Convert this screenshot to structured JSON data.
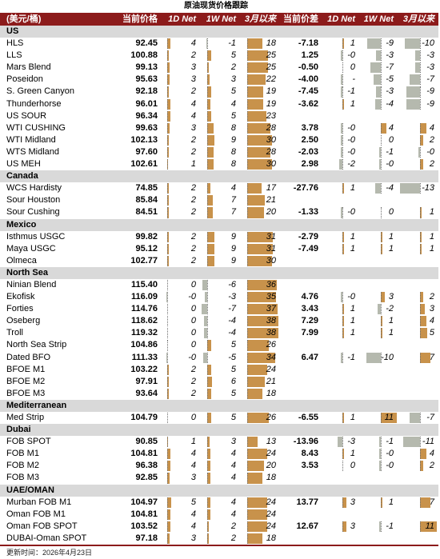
{
  "colors": {
    "header_background": "#8c1b1b",
    "header_text": "#ffffff",
    "section_background": "#d9d9d9",
    "bar_positive": "#c8924b",
    "bar_negative": "#b5b9ae"
  },
  "chart_data": {
    "type": "table",
    "title": "原油现货价格跟踪",
    "columns": [
      "(美元/桶)",
      "当前价格",
      "1D Net",
      "1W Net",
      "3月以来",
      "当前价差",
      "1D Net",
      "1W Net",
      "3月以来"
    ],
    "sections": [
      {
        "name": "US",
        "rows": [
          [
            "HLS",
            "92.45",
            "4",
            "-1",
            "18",
            "-7.18",
            "1",
            "-9",
            "-10"
          ],
          [
            "LLS",
            "100.88",
            "2",
            "5",
            "25",
            "1.25",
            "-0",
            "-3",
            "-3"
          ],
          [
            "Mars Blend",
            "99.13",
            "3",
            "2",
            "25",
            "-0.50",
            "0",
            "-7",
            "-3"
          ],
          [
            "Poseidon",
            "95.63",
            "3",
            "3",
            "22",
            "-4.00",
            "-",
            "-5",
            "-7"
          ],
          [
            "S. Green Canyon",
            "92.18",
            "2",
            "5",
            "19",
            "-7.45",
            "-1",
            "-3",
            "-9"
          ],
          [
            "Thunderhorse",
            "96.01",
            "4",
            "4",
            "19",
            "-3.62",
            "1",
            "-4",
            "-9"
          ],
          [
            "US SOUR",
            "96.34",
            "4",
            "5",
            "23",
            null,
            null,
            null,
            null
          ],
          [
            "WTI CUSHING",
            "99.63",
            "3",
            "8",
            "28",
            "3.78",
            "-0",
            "4",
            "4"
          ],
          [
            "WTI Midland",
            "102.13",
            "2",
            "9",
            "30",
            "2.50",
            "-0",
            "0",
            "2"
          ],
          [
            "WTS Midland",
            "97.60",
            "2",
            "8",
            "28",
            "-2.03",
            "-0",
            "-1",
            "-0"
          ],
          [
            "US MEH",
            "102.61",
            "1",
            "8",
            "30",
            "2.98",
            "-2",
            "-0",
            "2"
          ]
        ]
      },
      {
        "name": "Canada",
        "rows": [
          [
            "WCS Hardisty",
            "74.85",
            "2",
            "4",
            "17",
            "-27.76",
            "1",
            "-4",
            "-13"
          ],
          [
            "Sour Houston",
            "85.84",
            "2",
            "7",
            "21",
            null,
            null,
            null,
            null
          ],
          [
            "Sour Cushing",
            "84.51",
            "2",
            "7",
            "20",
            "-1.33",
            "-0",
            "0",
            "1"
          ]
        ]
      },
      {
        "name": "Mexico",
        "rows": [
          [
            "Isthmus USGC",
            "99.82",
            "2",
            "9",
            "31",
            "-2.79",
            "1",
            "1",
            "1"
          ],
          [
            "Maya USGC",
            "95.12",
            "2",
            "9",
            "31",
            "-7.49",
            "1",
            "1",
            "1"
          ],
          [
            "Olmeca",
            "102.77",
            "2",
            "9",
            "30",
            null,
            null,
            null,
            null
          ]
        ]
      },
      {
        "name": "North Sea",
        "rows": [
          [
            "Ninian Blend",
            "115.40",
            "0",
            "-6",
            "36",
            null,
            null,
            null,
            null
          ],
          [
            "Ekofisk",
            "116.09",
            "-0",
            "-3",
            "35",
            "4.76",
            "-0",
            "3",
            "2"
          ],
          [
            "Forties",
            "114.76",
            "0",
            "-7",
            "37",
            "3.43",
            "1",
            "-2",
            "3"
          ],
          [
            "Oseberg",
            "118.62",
            "0",
            "-4",
            "38",
            "7.29",
            "1",
            "1",
            "4"
          ],
          [
            "Troll",
            "119.32",
            "0",
            "-4",
            "38",
            "7.99",
            "1",
            "1",
            "5"
          ],
          [
            "North Sea Strip",
            "104.86",
            "0",
            "5",
            "26",
            null,
            null,
            null,
            null
          ],
          [
            "Dated BFO",
            "111.33",
            "-0",
            "-5",
            "34",
            "6.47",
            "-1",
            "-10",
            "7"
          ],
          [
            "BFOE M1",
            "103.22",
            "2",
            "5",
            "24",
            null,
            null,
            null,
            null
          ],
          [
            "BFOE M2",
            "97.91",
            "2",
            "6",
            "21",
            null,
            null,
            null,
            null
          ],
          [
            "BFOE M3",
            "93.64",
            "2",
            "5",
            "18",
            null,
            null,
            null,
            null
          ]
        ]
      },
      {
        "name": "Mediterranean",
        "rows": [
          [
            "Med Strip",
            "104.79",
            "0",
            "5",
            "26",
            "-6.55",
            "1",
            "11",
            "-7"
          ]
        ]
      },
      {
        "name": "Dubai",
        "rows": [
          [
            "FOB SPOT",
            "90.85",
            "1",
            "3",
            "13",
            "-13.96",
            "-3",
            "-1",
            "-11"
          ],
          [
            "FOB M1",
            "104.81",
            "4",
            "4",
            "24",
            "8.43",
            "1",
            "-0",
            "4"
          ],
          [
            "FOB M2",
            "96.38",
            "4",
            "4",
            "20",
            "3.53",
            "0",
            "-0",
            "2"
          ],
          [
            "FOB M3",
            "92.85",
            "3",
            "4",
            "18",
            null,
            null,
            null,
            null
          ]
        ]
      },
      {
        "name": "UAE/OMAN",
        "rows": [
          [
            "Murban FOB M1",
            "104.97",
            "5",
            "4",
            "24",
            "13.77",
            "3",
            "1",
            "7"
          ],
          [
            "Oman FOB M1",
            "104.81",
            "4",
            "4",
            "24",
            null,
            null,
            null,
            null
          ],
          [
            "Oman FOB SPOT",
            "103.52",
            "4",
            "2",
            "24",
            "12.67",
            "3",
            "-1",
            "11"
          ],
          [
            "DUBAI-Oman SPOT",
            "97.18",
            "3",
            "2",
            "18",
            null,
            null,
            null,
            null
          ]
        ]
      }
    ],
    "footnote": "更新时间：2026年4月23日"
  }
}
